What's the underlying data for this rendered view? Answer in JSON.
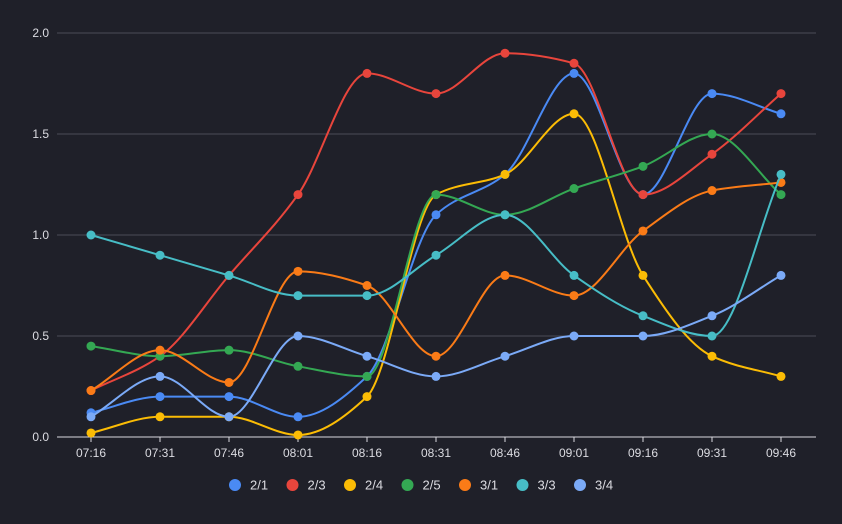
{
  "chart_data": {
    "type": "line",
    "smooth": true,
    "title": "",
    "xlabel": "",
    "ylabel": "",
    "ylim": [
      0,
      2
    ],
    "yticks": [
      "0.0",
      "0.5",
      "1.0",
      "1.5",
      "2.0"
    ],
    "ytick_values": [
      0,
      0.5,
      1,
      1.5,
      2
    ],
    "grid": true,
    "legend_position": "bottom-center",
    "categories": [
      "07:16",
      "07:31",
      "07:46",
      "08:01",
      "08:16",
      "08:31",
      "08:46",
      "09:01",
      "09:16",
      "09:31",
      "09:46"
    ],
    "series": [
      {
        "name": "2/1",
        "color": "#4a8af4",
        "values": [
          0.12,
          0.2,
          0.2,
          0.1,
          0.3,
          1.1,
          1.3,
          1.8,
          1.2,
          1.7,
          1.6
        ]
      },
      {
        "name": "2/3",
        "color": "#e8453c",
        "values": [
          0.23,
          0.4,
          0.8,
          1.2,
          1.8,
          1.7,
          1.9,
          1.85,
          1.2,
          1.4,
          1.7
        ]
      },
      {
        "name": "2/4",
        "color": "#fbbc05",
        "values": [
          0.02,
          0.1,
          0.1,
          0.01,
          0.2,
          1.2,
          1.3,
          1.6,
          0.8,
          0.4,
          0.3
        ]
      },
      {
        "name": "2/5",
        "color": "#34a853",
        "values": [
          0.45,
          0.4,
          0.43,
          0.35,
          0.3,
          1.2,
          1.1,
          1.23,
          1.34,
          1.5,
          1.2
        ]
      },
      {
        "name": "3/1",
        "color": "#fa7b17",
        "values": [
          0.23,
          0.43,
          0.27,
          0.82,
          0.75,
          0.4,
          0.8,
          0.7,
          1.02,
          1.22,
          1.26
        ]
      },
      {
        "name": "3/3",
        "color": "#47bdc6",
        "values": [
          1.0,
          0.9,
          0.8,
          0.7,
          0.7,
          0.9,
          1.1,
          0.8,
          0.6,
          0.5,
          1.3
        ]
      },
      {
        "name": "3/4",
        "color": "#7baaf7",
        "values": [
          0.1,
          0.3,
          0.1,
          0.5,
          0.4,
          0.3,
          0.4,
          0.5,
          0.5,
          0.6,
          0.8
        ]
      }
    ]
  },
  "colors": {
    "background": "#1f2029",
    "grid": "#4b4d57",
    "axis": "#d9d9de",
    "text": "#dcdce2"
  }
}
